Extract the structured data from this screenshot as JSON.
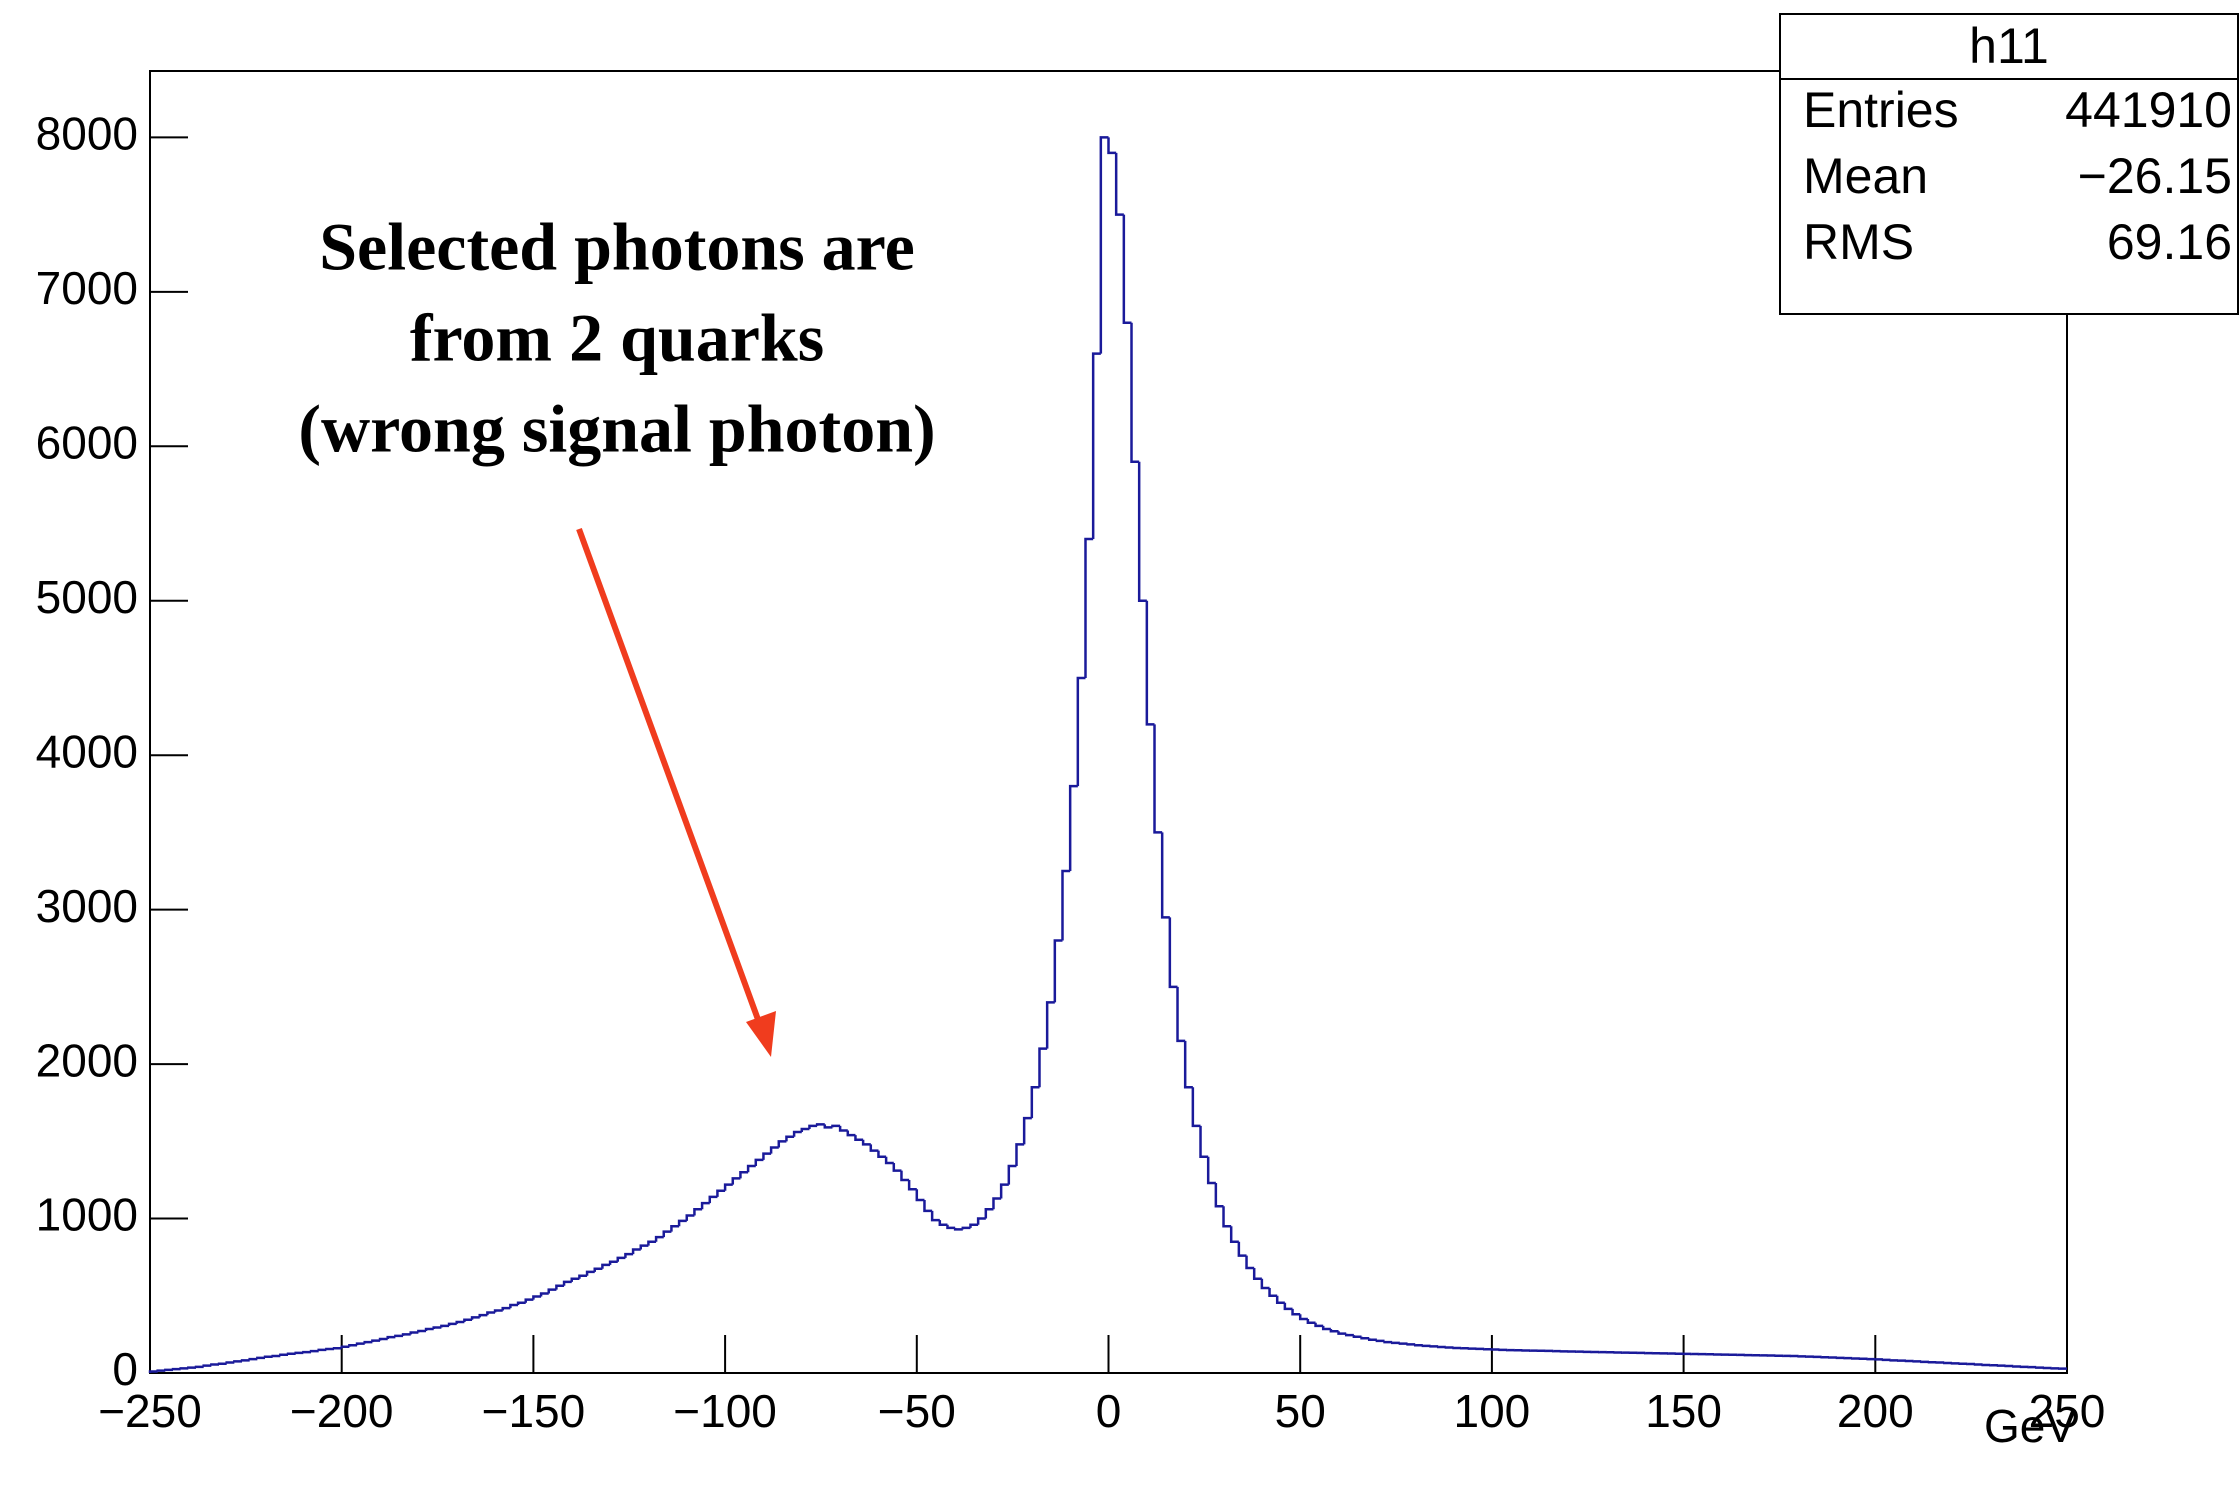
{
  "chart_data": {
    "type": "histogram",
    "x_label": "GeV",
    "color": "#1a1a9a",
    "bins": [
      -250,
      -248,
      -246,
      -244,
      -242,
      -240,
      -238,
      -236,
      -234,
      -232,
      -230,
      -228,
      -226,
      -224,
      -222,
      -220,
      -218,
      -216,
      -214,
      -212,
      -210,
      -208,
      -206,
      -204,
      -202,
      -200,
      -198,
      -196,
      -194,
      -192,
      -190,
      -188,
      -186,
      -184,
      -182,
      -180,
      -178,
      -176,
      -174,
      -172,
      -170,
      -168,
      -166,
      -164,
      -162,
      -160,
      -158,
      -156,
      -154,
      -152,
      -150,
      -148,
      -146,
      -144,
      -142,
      -140,
      -138,
      -136,
      -134,
      -132,
      -130,
      -128,
      -126,
      -124,
      -122,
      -120,
      -118,
      -116,
      -114,
      -112,
      -110,
      -108,
      -106,
      -104,
      -102,
      -100,
      -98,
      -96,
      -94,
      -92,
      -90,
      -88,
      -86,
      -84,
      -82,
      -80,
      -78,
      -76,
      -74,
      -72,
      -70,
      -68,
      -66,
      -64,
      -62,
      -60,
      -58,
      -56,
      -54,
      -52,
      -50,
      -48,
      -46,
      -44,
      -42,
      -40,
      -38,
      -36,
      -34,
      -32,
      -30,
      -28,
      -26,
      -24,
      -22,
      -20,
      -18,
      -16,
      -14,
      -12,
      -10,
      -8,
      -6,
      -4,
      -2,
      0,
      2,
      4,
      6,
      8,
      10,
      12,
      14,
      16,
      18,
      20,
      22,
      24,
      26,
      28,
      30,
      32,
      34,
      36,
      38,
      40,
      42,
      44,
      46,
      48,
      50,
      52,
      54,
      56,
      58,
      60,
      62,
      64,
      66,
      68,
      70,
      72,
      74,
      76,
      78,
      80,
      82,
      84,
      86,
      88,
      90,
      92,
      94,
      96,
      98,
      100,
      102,
      104,
      106,
      108,
      110,
      112,
      114,
      116,
      118,
      120,
      122,
      124,
      126,
      128,
      130,
      132,
      134,
      136,
      138,
      140,
      142,
      144,
      146,
      148,
      150,
      152,
      154,
      156,
      158,
      160,
      162,
      164,
      166,
      168,
      170,
      172,
      174,
      176,
      178,
      180,
      182,
      184,
      186,
      188,
      190,
      192,
      194,
      196,
      198,
      200,
      202,
      204,
      206,
      208,
      210,
      212,
      214,
      216,
      218,
      220,
      222,
      224,
      226,
      228,
      230,
      232,
      234,
      236,
      238,
      240,
      242,
      244,
      246,
      248,
      250
    ],
    "values": [
      10,
      15,
      20,
      25,
      30,
      35,
      40,
      48,
      55,
      60,
      68,
      75,
      82,
      90,
      98,
      105,
      110,
      118,
      125,
      130,
      135,
      142,
      150,
      155,
      160,
      170,
      180,
      190,
      200,
      210,
      220,
      232,
      240,
      250,
      262,
      272,
      285,
      295,
      305,
      318,
      330,
      345,
      360,
      375,
      392,
      405,
      420,
      440,
      455,
      475,
      495,
      515,
      540,
      565,
      590,
      610,
      630,
      655,
      675,
      700,
      720,
      745,
      770,
      800,
      825,
      850,
      880,
      915,
      950,
      985,
      1020,
      1060,
      1100,
      1140,
      1180,
      1220,
      1260,
      1300,
      1340,
      1380,
      1420,
      1460,
      1500,
      1530,
      1560,
      1580,
      1600,
      1610,
      1590,
      1600,
      1570,
      1540,
      1510,
      1480,
      1440,
      1400,
      1360,
      1310,
      1250,
      1190,
      1120,
      1050,
      990,
      960,
      940,
      930,
      940,
      960,
      1000,
      1060,
      1130,
      1220,
      1340,
      1480,
      1650,
      1850,
      2100,
      2400,
      2800,
      3250,
      3800,
      4500,
      5400,
      6600,
      8000,
      7900,
      7500,
      6800,
      5900,
      5000,
      4200,
      3500,
      2950,
      2500,
      2150,
      1850,
      1600,
      1400,
      1230,
      1080,
      950,
      850,
      760,
      680,
      610,
      550,
      500,
      455,
      415,
      380,
      350,
      325,
      305,
      285,
      270,
      255,
      245,
      235,
      225,
      215,
      208,
      200,
      195,
      190,
      185,
      180,
      176,
      172,
      168,
      165,
      162,
      160,
      158,
      156,
      154,
      152,
      150,
      148,
      147,
      146,
      145,
      144,
      143,
      142,
      140,
      139,
      138,
      137,
      136,
      135,
      134,
      133,
      132,
      131,
      130,
      129,
      128,
      127,
      126,
      125,
      124,
      123,
      122,
      121,
      120,
      119,
      118,
      117,
      116,
      115,
      114,
      113,
      112,
      111,
      110,
      108,
      106,
      104,
      102,
      100,
      98,
      96,
      94,
      92,
      90,
      88,
      85,
      82,
      80,
      78,
      75,
      72,
      70,
      68,
      65,
      62,
      60,
      58,
      55,
      52,
      50,
      48,
      45,
      42,
      40,
      38,
      35,
      32,
      30,
      28
    ],
    "xlim": [
      -250,
      250
    ],
    "xticks": [
      {
        "value": -250,
        "label": "−250"
      },
      {
        "value": -200,
        "label": "−200"
      },
      {
        "value": -150,
        "label": "−150"
      },
      {
        "value": -100,
        "label": "−100"
      },
      {
        "value": -50,
        "label": "−50"
      },
      0,
      50,
      100,
      150,
      200,
      250
    ],
    "ylim": [
      0,
      8430
    ],
    "yticks": [
      0,
      1000,
      2000,
      3000,
      4000,
      5000,
      6000,
      7000,
      8000
    ],
    "annotation": {
      "lines": [
        "Selected photons are",
        "from 2 quarks",
        "(wrong signal photon)"
      ],
      "color": "#f03c1e"
    },
    "stats": {
      "title": "h11",
      "rows": [
        [
          "Entries",
          "441910"
        ],
        [
          "Mean",
          "−26.15"
        ],
        [
          "RMS",
          "69.16"
        ]
      ]
    }
  }
}
